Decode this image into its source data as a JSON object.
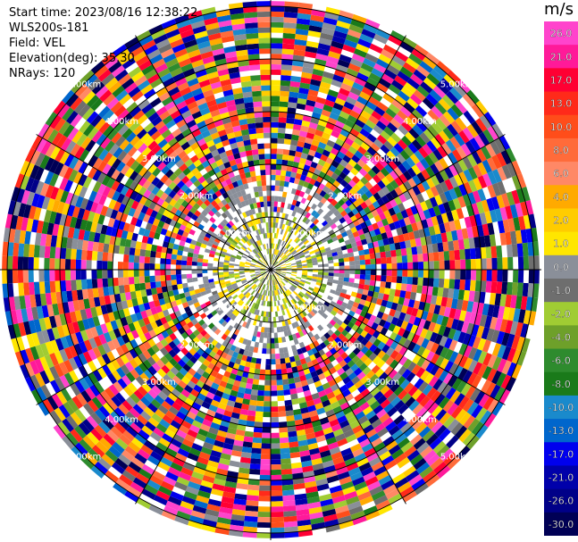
{
  "header": {
    "start_time": "Start time: 2023/08/16 12:38:22",
    "instrument": "WLS200s-181",
    "field": "Field: VEL",
    "elevation": "Elevation(deg): 35.30",
    "nrays": "NRays: 120"
  },
  "chart_data": {
    "type": "heatmap",
    "projection": "polar-ppi",
    "field": "VEL",
    "unit": "m/s",
    "n_rays": 120,
    "elevation_deg": 35.3,
    "range_rings_km": [
      1.0,
      2.0,
      3.0,
      4.0,
      5.0
    ],
    "range_ring_labels": [
      "1.00km",
      "2.00km",
      "3.00km",
      "4.00km",
      "5.00km"
    ],
    "colorbar": {
      "title": "m/s",
      "tick_labels": [
        "26.0",
        "21.0",
        "17.0",
        "13.0",
        "10.0",
        "8.0",
        "6.0",
        "4.0",
        "2.0",
        "1.0",
        "0.0",
        "-1.0",
        "-2.0",
        "-4.0",
        "-6.0",
        "-8.0",
        "-10.0",
        "-13.0",
        "-17.0",
        "-21.0",
        "-26.0",
        "-30.0"
      ],
      "bin_colors": [
        "#ff44cc",
        "#ff1a99",
        "#ff0033",
        "#ff2a1a",
        "#ff4d1a",
        "#ff6b3a",
        "#ff8866",
        "#ffaa00",
        "#ffcc00",
        "#ffe600",
        "#8a8f99",
        "#6e6e6e",
        "#a0cc33",
        "#6ea02a",
        "#2e8b2e",
        "#1a7a1a",
        "#1a8acc",
        "#0066cc",
        "#0000ee",
        "#0000aa",
        "#000088",
        "#000055"
      ]
    },
    "pattern": "near-range (< ~1 km) mostly low velocities (grey / yellow / green speckle); beyond ~1.5 km range values are noisy and span the full -30 to 26 m/s colour scale"
  }
}
